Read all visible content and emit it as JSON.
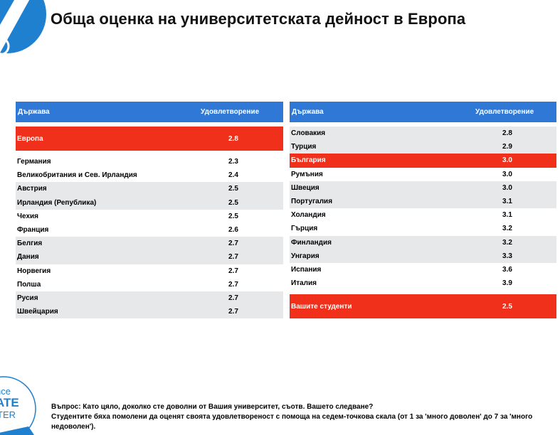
{
  "title": "Обща оценка на университетската дейност в Европа",
  "left_table": {
    "header": {
      "country": "Държава",
      "satisfaction": "Удовлетворение"
    },
    "europe": {
      "name": "Европа",
      "value": "2.8"
    },
    "rows": [
      {
        "name": "Германия",
        "value": "2.3"
      },
      {
        "name": "Великобритания и Сев. Ирландия",
        "value": "2.4"
      },
      {
        "name": "Австрия",
        "value": "2.5"
      },
      {
        "name": "Ирландия (Република)",
        "value": "2.5"
      },
      {
        "name": "Чехия",
        "value": "2.5"
      },
      {
        "name": "Франция",
        "value": "2.6"
      },
      {
        "name": "Белгия",
        "value": "2.7"
      },
      {
        "name": "Дания",
        "value": "2.7"
      },
      {
        "name": "Норвегия",
        "value": "2.7"
      },
      {
        "name": "Полша",
        "value": "2.7"
      },
      {
        "name": "Русия",
        "value": "2.7"
      },
      {
        "name": "Швейцария",
        "value": "2.7"
      }
    ]
  },
  "right_table": {
    "header": {
      "country": "Държава",
      "satisfaction": "Удовлетворение"
    },
    "rows": [
      {
        "name": "Словакия",
        "value": "2.8"
      },
      {
        "name": "Турция",
        "value": "2.9"
      },
      {
        "name": "България",
        "value": "3.0"
      },
      {
        "name": "Румъния",
        "value": "3.0"
      },
      {
        "name": "Швеция",
        "value": "3.0"
      },
      {
        "name": "Португалия",
        "value": "3.1"
      },
      {
        "name": "Холандия",
        "value": "3.1"
      },
      {
        "name": "Гърция",
        "value": "3.2"
      },
      {
        "name": "Финландия",
        "value": "3.2"
      },
      {
        "name": "Унгария",
        "value": "3.3"
      },
      {
        "name": "Испания",
        "value": "3.6"
      },
      {
        "name": "Италия",
        "value": "3.9"
      }
    ],
    "students": {
      "name": "Вашите студенти",
      "value": "2.5"
    }
  },
  "footer": {
    "question": "Въпрос: Като цяло, доколко сте доволни от Вашия университет, съотв. Вашето следване?",
    "note": "Студентите бяха помолени да оценят своята удовлетвореност с помоща на седем-точкова скала (от 1 за 'много доволен' до 7 за 'много недоволен')."
  },
  "logo_bottom": {
    "line1": "nce",
    "line2": "ATE",
    "line3": "TER"
  },
  "colors": {
    "header_blue": "#2f78d6",
    "highlight_red": "#f0301a",
    "stripe_grey": "#e6e8ea",
    "logo_blue": "#1f80d0"
  }
}
